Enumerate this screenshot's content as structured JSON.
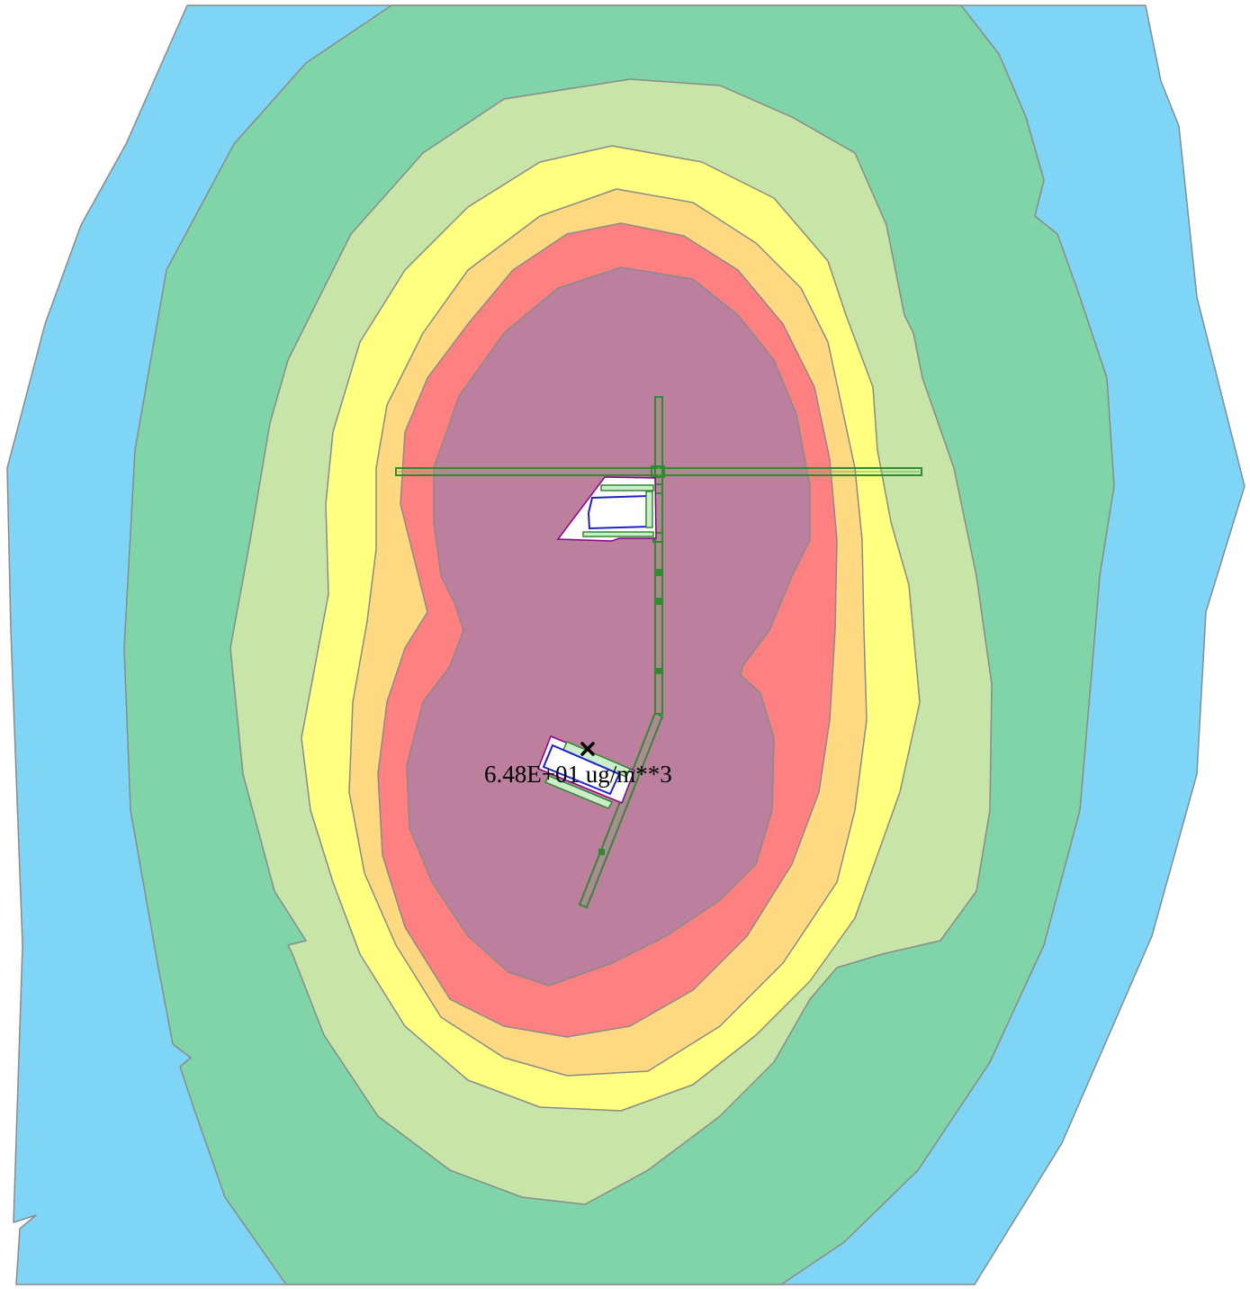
{
  "map": {
    "colors": {
      "band_1": "#7fd5f5",
      "band_2": "#80d5a8",
      "band_3": "#c8e5a8",
      "band_4": "#ffff80",
      "band_5": "#ffd882",
      "band_6": "#ff8080",
      "band_7": "#bd7f9e",
      "contour_line": "#8a8a8a",
      "road": "#2e8b2e",
      "building_outline": "#8b008b",
      "building_inner": "#1f1fd0"
    },
    "max_marker": {
      "icon": "x-mark-icon",
      "label": "6.48E+01 ug/m**3"
    }
  }
}
